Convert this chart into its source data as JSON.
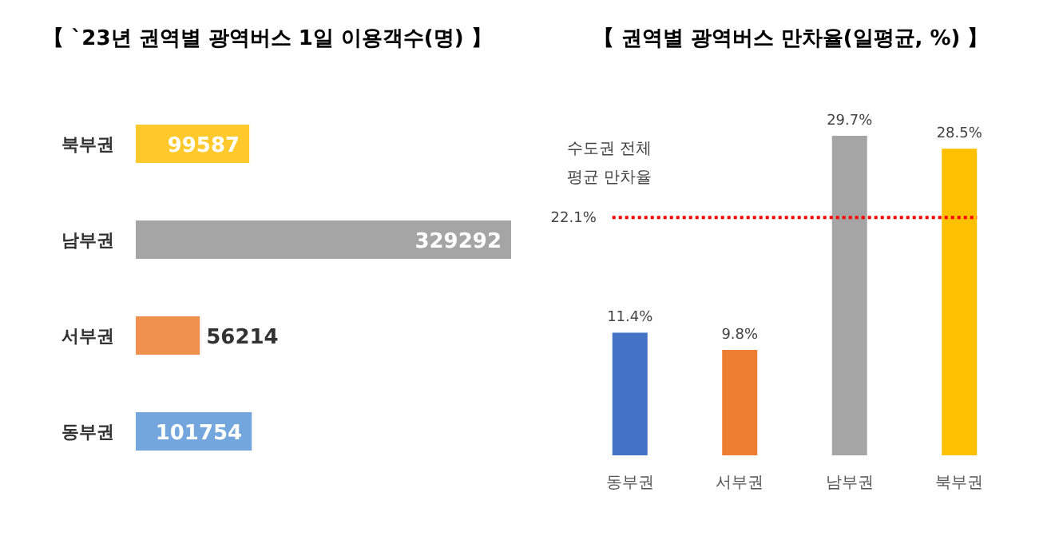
{
  "chart_data": [
    {
      "type": "bar",
      "title": "【 `23년 권역별 광역버스 1일 이용객수(명) 】",
      "orientation": "horizontal",
      "categories": [
        "북부권",
        "남부권",
        "서부권",
        "동부권"
      ],
      "values": [
        99587,
        329292,
        56214,
        101754
      ],
      "colors": [
        "#ffc92b",
        "#a5a5a5",
        "#f0904f",
        "#72a6dc"
      ],
      "data_labels": true
    },
    {
      "type": "bar",
      "title": "【 권역별 광역버스 만차율(일평균, %) 】",
      "categories": [
        "동부권",
        "서부권",
        "남부권",
        "북부권"
      ],
      "values": [
        11.4,
        9.8,
        29.7,
        28.5
      ],
      "colors": [
        "#4472c4",
        "#ed7d31",
        "#a5a5a5",
        "#ffc000"
      ],
      "value_labels": [
        "11.4%",
        "9.8%",
        "29.7%",
        "28.5%"
      ],
      "ref_lines": [
        {
          "axis": "y",
          "value": 22.1,
          "label": "수도권 전체 평균 만차율",
          "color": "#ff0000",
          "line_style": "dotted"
        }
      ],
      "annotations": [
        "22.1%"
      ]
    }
  ]
}
